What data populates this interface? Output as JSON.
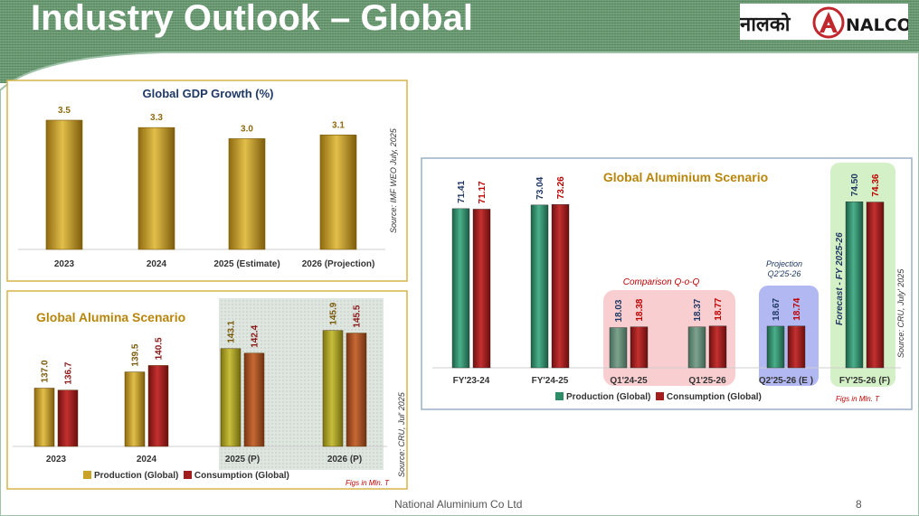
{
  "slide": {
    "title": "Industry Outlook – Global",
    "footer": "National Aluminium Co Ltd",
    "page_number": "8",
    "logo_hindi": "नालको",
    "logo_text": "NALCO"
  },
  "colors": {
    "header_green": "#6d9c75",
    "gold": "#c9a227",
    "gold_dark": "#8e6a10",
    "red": "#a21d1d",
    "teal": "#2e8b68",
    "navy": "#1f3864",
    "brown": "#b05424"
  },
  "chart_data": [
    {
      "id": "gdp",
      "type": "bar",
      "title": "Global GDP Growth (%)",
      "categories": [
        "2023",
        "2024",
        "2025 (Estimate)",
        "2026 (Projection)"
      ],
      "values": [
        3.5,
        3.3,
        3.0,
        3.1
      ],
      "labels": [
        "3.5",
        "3.3",
        "3.0",
        "3.1"
      ],
      "ylim": [
        0,
        3.5
      ],
      "source": "Source: IMF WEO July, 2025"
    },
    {
      "id": "alumina",
      "type": "bar",
      "title": "Global Alumina Scenario",
      "categories": [
        "2023",
        "2024",
        "2025 (P)",
        "2026 (P)"
      ],
      "series": [
        {
          "name": "Production (Global)",
          "values": [
            137.0,
            139.5,
            143.1,
            145.9
          ],
          "labels": [
            "137.0",
            "139.5",
            "143.1",
            "145.9"
          ]
        },
        {
          "name": "Consumption (Global)",
          "values": [
            136.7,
            140.5,
            142.4,
            145.5
          ],
          "labels": [
            "136.7",
            "140.5",
            "142.4",
            "145.5"
          ]
        }
      ],
      "ylim": [
        128,
        146
      ],
      "source": "Source: CRU, Jul' 2025",
      "units_note": "Figs in Mln. T"
    },
    {
      "id": "aluminium",
      "type": "bar",
      "title": "Global Aluminium Scenario",
      "categories": [
        "FY'23-24",
        "FY'24-25",
        "Q1'24-25",
        "Q1'25-26",
        "Q2'25-26 (E )",
        "FY'25-26 (F)"
      ],
      "series": [
        {
          "name": "Production (Global)",
          "values": [
            71.41,
            73.04,
            18.03,
            18.37,
            18.67,
            74.5
          ],
          "labels": [
            "71.41",
            "73.04",
            "18.03",
            "18.37",
            "18.67",
            "74.50"
          ]
        },
        {
          "name": "Consumption (Global)",
          "values": [
            71.17,
            73.26,
            18.38,
            18.77,
            18.74,
            74.36
          ],
          "labels": [
            "71.17",
            "73.26",
            "18.38",
            "18.77",
            "18.74",
            "74.36"
          ]
        }
      ],
      "ylim": [
        0,
        75
      ],
      "annotations": {
        "comparison": "Comparison Q-o-Q",
        "projection_line1": "Projection",
        "projection_line2": "Q2'25-26",
        "forecast": "Forecast  -  FY 2025-26"
      },
      "source": "Source: CRU, July' 2025",
      "units_note": "Figs in Mln. T"
    }
  ]
}
